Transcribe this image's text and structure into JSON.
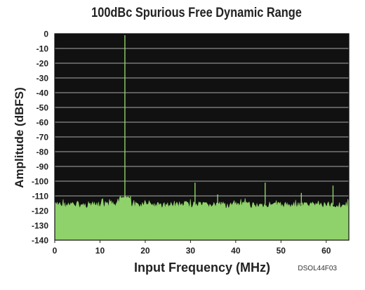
{
  "chart_data": {
    "type": "line",
    "title": "100dBc Spurious Free Dynamic Range",
    "xlabel": "Input Frequency (MHz)",
    "ylabel": "Amplitude (dBFS)",
    "xlim": [
      0,
      65
    ],
    "ylim": [
      -140,
      0
    ],
    "x_ticks": [
      0,
      10,
      20,
      30,
      40,
      50,
      60
    ],
    "y_ticks": [
      0,
      -10,
      -20,
      -30,
      -40,
      -50,
      -60,
      -70,
      -80,
      -90,
      -100,
      -110,
      -120,
      -130,
      -140
    ],
    "grid": "horizontal",
    "plot_background": "#111111",
    "grid_color": "#a9a9a9",
    "series": [
      {
        "color": "#8fd16a",
        "noise_floor": {
          "x_range": [
            0,
            65
          ],
          "upper_envelope_dbfs": -114,
          "fill_to": -140
        },
        "peaks": [
          {
            "x": 15.5,
            "y": -1
          },
          {
            "x": 31,
            "y": -101
          },
          {
            "x": 36,
            "y": -109
          },
          {
            "x": 46.5,
            "y": -101
          },
          {
            "x": 54.5,
            "y": -108
          },
          {
            "x": 61.5,
            "y": -103
          }
        ]
      }
    ]
  },
  "figure_code": "DSOL44F03"
}
